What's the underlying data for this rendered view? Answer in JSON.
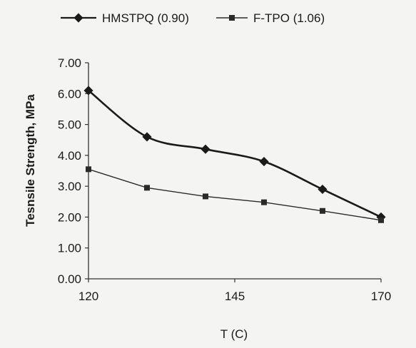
{
  "chart_data": {
    "type": "line",
    "title": "",
    "xlabel": "T (C)",
    "ylabel": "Tesnsile Strength, MPa",
    "xlim": [
      120,
      170
    ],
    "ylim": [
      0,
      7
    ],
    "x_ticks": [
      120,
      145,
      170
    ],
    "x_tick_labels": [
      "120",
      "145",
      "170"
    ],
    "y_ticks": [
      0,
      1,
      2,
      3,
      4,
      5,
      6,
      7
    ],
    "y_tick_labels": [
      "0.00",
      "1.00",
      "2.00",
      "3.00",
      "4.00",
      "5.00",
      "6.00",
      "7.00"
    ],
    "grid": false,
    "legend_position": "top",
    "series": [
      {
        "name": "HMSTPQ (0.90)",
        "marker": "diamond",
        "color": "#1a1a1a",
        "x": [
          120,
          130,
          140,
          150,
          160,
          170
        ],
        "y": [
          6.1,
          4.6,
          4.2,
          3.8,
          2.9,
          2.0
        ]
      },
      {
        "name": "F-TPO (1.06)",
        "marker": "square",
        "color": "#2a2a2a",
        "x": [
          120,
          130,
          140,
          150,
          160,
          170
        ],
        "y": [
          3.55,
          2.95,
          2.67,
          2.48,
          2.2,
          1.9
        ]
      }
    ]
  }
}
